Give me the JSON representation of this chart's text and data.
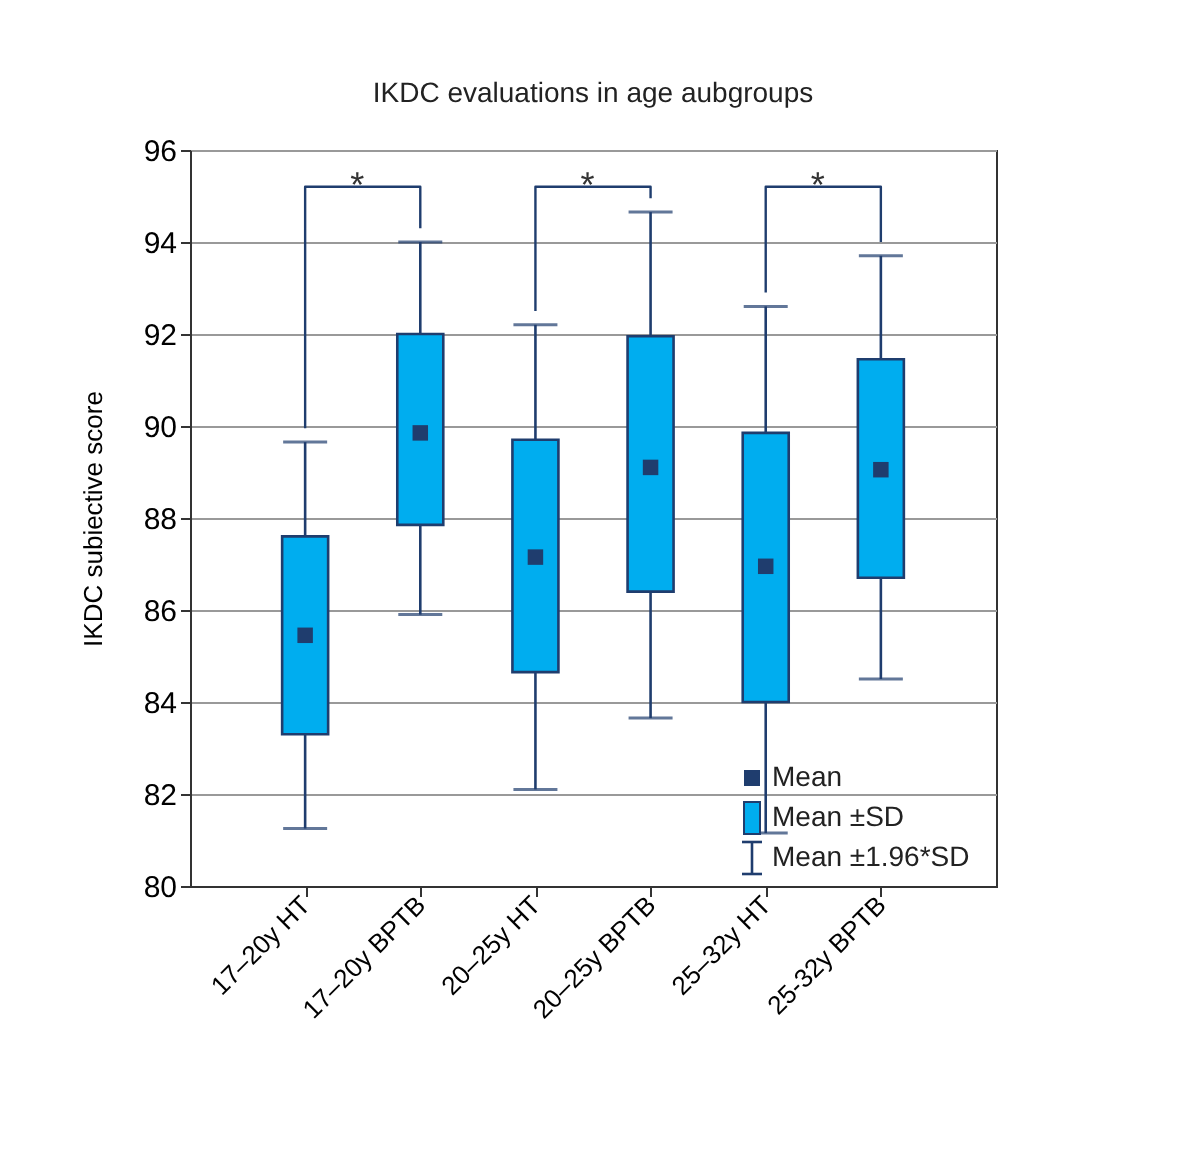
{
  "chart_data": {
    "type": "box",
    "title": "IKDC evaluations in age aubgroups",
    "ylabel": "IKDC subiective score",
    "categories": [
      "17–20y HT",
      "17–20y BPTB",
      "20–25y HT",
      "20–25y BPTB",
      "25–32y HT",
      "25-32y BPTB"
    ],
    "series": [
      {
        "name": "Mean ±SD",
        "color": "#00adef",
        "boxes": [
          {
            "low": 81.25,
            "q1": 83.3,
            "median": 85.45,
            "q3": 87.6,
            "high": 89.65
          },
          {
            "low": 85.9,
            "q1": 87.85,
            "median": 89.85,
            "q3": 92.0,
            "high": 94.0
          },
          {
            "low": 82.1,
            "q1": 84.65,
            "median": 87.15,
            "q3": 89.7,
            "high": 92.2
          },
          {
            "low": 83.65,
            "q1": 86.4,
            "median": 89.1,
            "q3": 91.95,
            "high": 94.65
          },
          {
            "low": 81.15,
            "q1": 84.0,
            "median": 86.95,
            "q3": 89.85,
            "high": 92.6
          },
          {
            "low": 84.5,
            "q1": 86.7,
            "median": 89.05,
            "q3": 91.45,
            "high": 93.7
          }
        ]
      }
    ],
    "ylim": [
      80,
      96
    ],
    "yticks": [
      80,
      82,
      84,
      86,
      88,
      90,
      92,
      94,
      96
    ],
    "grid": "y",
    "legend": "bottom right",
    "marker": "square",
    "annotations": [
      "*",
      "*",
      "*",
      "Mean",
      "Mean ±1.96*SD"
    ]
  }
}
